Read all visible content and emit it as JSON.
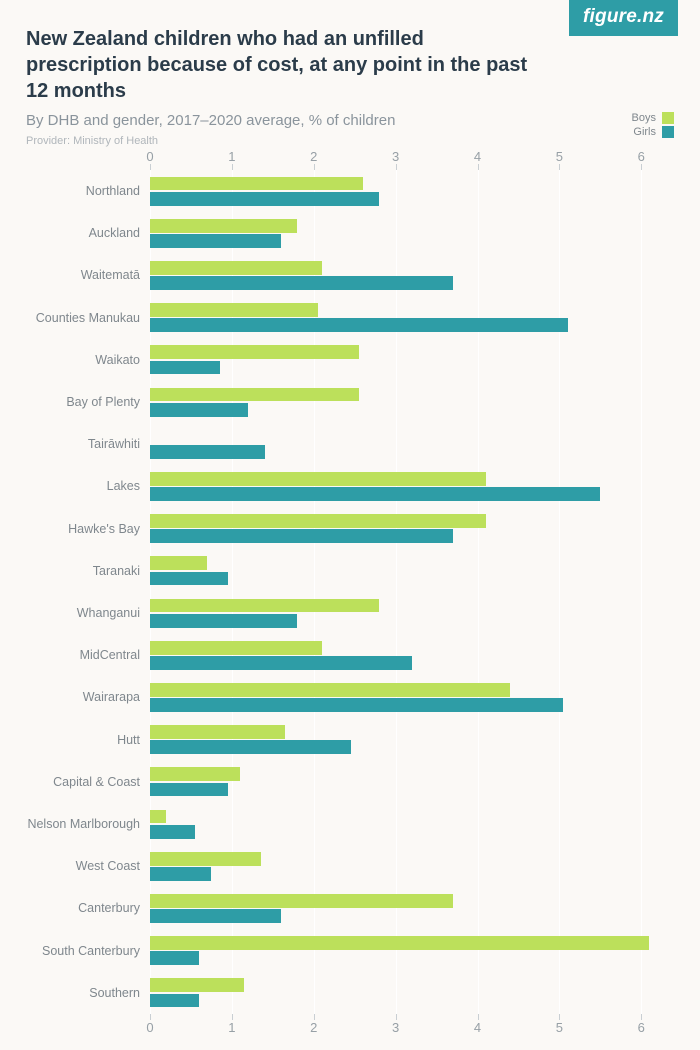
{
  "logo": {
    "text": "figure.nz",
    "bg": "#2e9da6",
    "color": "#ffffff"
  },
  "header": {
    "title": "New Zealand children who had an unfilled prescription because of cost, at any point in the past 12 months",
    "subtitle": "By DHB and gender, 2017–2020 average, % of children",
    "provider": "Provider: Ministry of Health"
  },
  "legend": {
    "series": [
      {
        "label": "Boys",
        "color": "#bce05b"
      },
      {
        "label": "Girls",
        "color": "#2e9da6"
      }
    ]
  },
  "chart": {
    "type": "bar-horizontal-grouped",
    "x_min": 0,
    "x_max": 6.4,
    "ticks": [
      0,
      1,
      2,
      3,
      4,
      5,
      6
    ],
    "background": "#fbf9f6",
    "gridline_color": "#ffffff",
    "tick_color": "#c9cfd3",
    "axis_label_color": "#97a0a6",
    "cat_label_color": "#7f878d",
    "colors": {
      "boys": "#bce05b",
      "girls": "#2e9da6"
    },
    "categories": [
      {
        "label": "Northland",
        "boys": 2.6,
        "girls": 2.8
      },
      {
        "label": "Auckland",
        "boys": 1.8,
        "girls": 1.6
      },
      {
        "label": "Waitematā",
        "boys": 2.1,
        "girls": 3.7
      },
      {
        "label": "Counties Manukau",
        "boys": 2.05,
        "girls": 5.1
      },
      {
        "label": "Waikato",
        "boys": 2.55,
        "girls": 0.85
      },
      {
        "label": "Bay of Plenty",
        "boys": 2.55,
        "girls": 1.2
      },
      {
        "label": "Tairāwhiti",
        "boys": 0.0,
        "girls": 1.4
      },
      {
        "label": "Lakes",
        "boys": 4.1,
        "girls": 5.5
      },
      {
        "label": "Hawke's Bay",
        "boys": 4.1,
        "girls": 3.7
      },
      {
        "label": "Taranaki",
        "boys": 0.7,
        "girls": 0.95
      },
      {
        "label": "Whanganui",
        "boys": 2.8,
        "girls": 1.8
      },
      {
        "label": "MidCentral",
        "boys": 2.1,
        "girls": 3.2
      },
      {
        "label": "Wairarapa",
        "boys": 4.4,
        "girls": 5.05
      },
      {
        "label": "Hutt",
        "boys": 1.65,
        "girls": 2.45
      },
      {
        "label": "Capital & Coast",
        "boys": 1.1,
        "girls": 0.95
      },
      {
        "label": "Nelson Marlborough",
        "boys": 0.2,
        "girls": 0.55
      },
      {
        "label": "West Coast",
        "boys": 1.35,
        "girls": 0.75
      },
      {
        "label": "Canterbury",
        "boys": 3.7,
        "girls": 1.6
      },
      {
        "label": "South Canterbury",
        "boys": 6.1,
        "girls": 0.6
      },
      {
        "label": "Southern",
        "boys": 1.15,
        "girls": 0.6
      }
    ]
  }
}
